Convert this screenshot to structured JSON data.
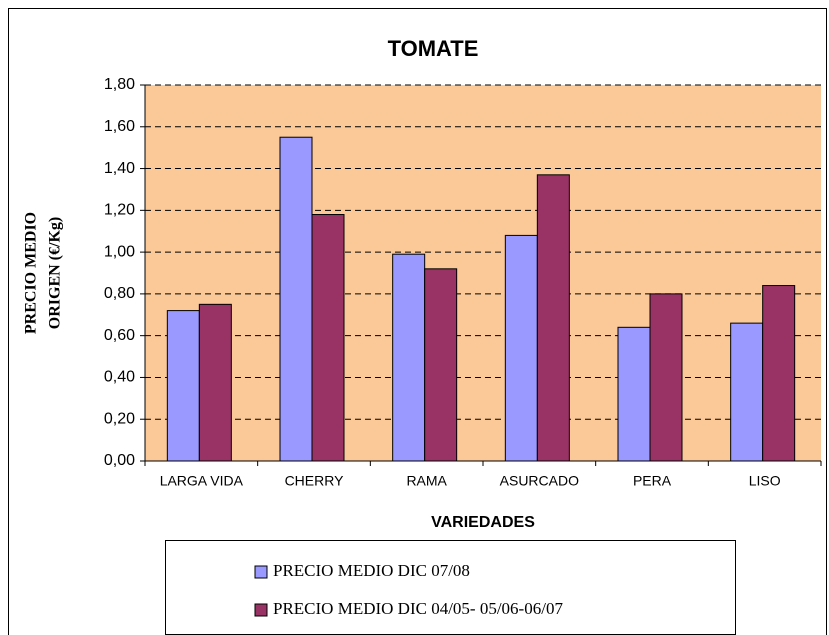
{
  "chart_data": {
    "type": "bar",
    "title": "TOMATE",
    "x_label": "VARIEDADES",
    "y_label": [
      "PRECIO MEDIO",
      "ORIGEN (€/Kg)"
    ],
    "categories": [
      "LARGA VIDA",
      "CHERRY",
      "RAMA",
      "ASURCADO",
      "PERA",
      "LISO"
    ],
    "series": [
      {
        "name": "PRECIO MEDIO DIC 07/08",
        "color": "#9999ff",
        "values": [
          0.72,
          1.55,
          0.99,
          1.08,
          0.64,
          0.66
        ]
      },
      {
        "name": "PRECIO MEDIO DIC 04/05- 05/06-06/07",
        "color": "#993366",
        "values": [
          0.75,
          1.18,
          0.92,
          1.37,
          0.8,
          0.84
        ]
      }
    ],
    "ylim": [
      0,
      1.8
    ],
    "yticks": [
      {
        "value": 0,
        "label": "0,00"
      },
      {
        "value": 0.2,
        "label": "0,20"
      },
      {
        "value": 0.4,
        "label": "0,40"
      },
      {
        "value": 0.6,
        "label": "0,60"
      },
      {
        "value": 0.8,
        "label": "0,80"
      },
      {
        "value": 1.0,
        "label": "1,00"
      },
      {
        "value": 1.2,
        "label": "1,20"
      },
      {
        "value": 1.4,
        "label": "1,40"
      },
      {
        "value": 1.6,
        "label": "1,60"
      },
      {
        "value": 1.8,
        "label": "1,80"
      }
    ],
    "grid": true,
    "plot_color": "#fbc897",
    "legend": "bottom"
  }
}
